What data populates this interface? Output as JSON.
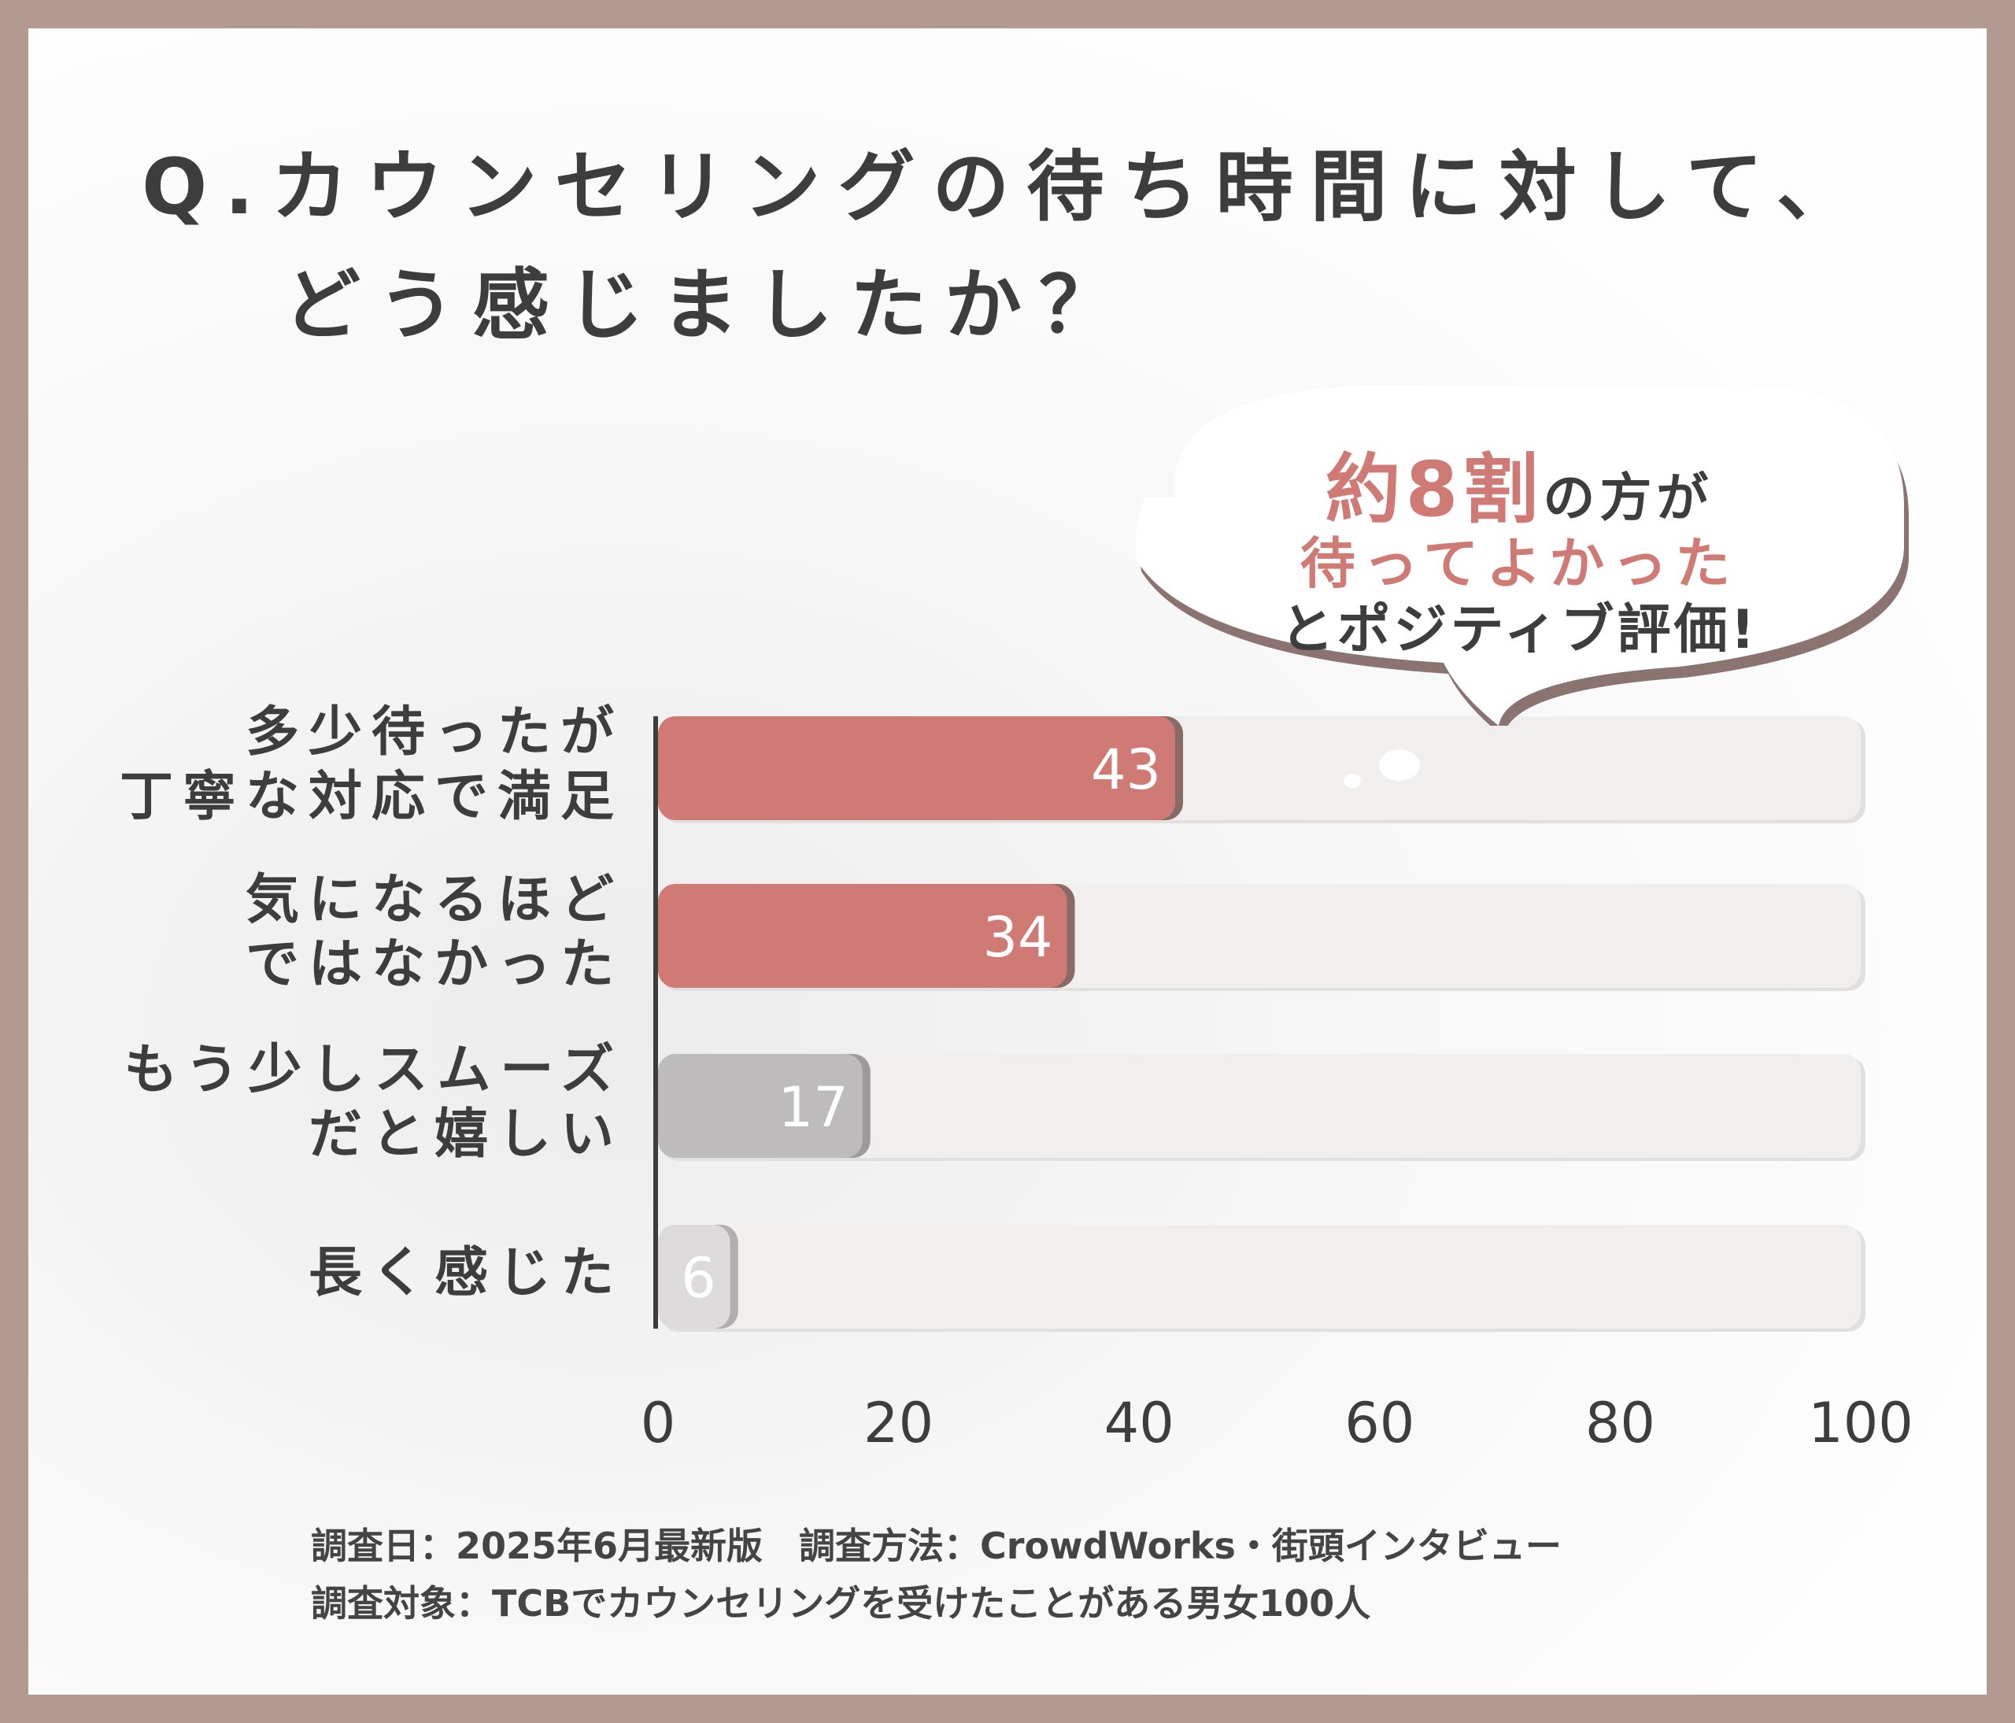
{
  "title": {
    "line1": "Q.カウンセリングの待ち時間に対して、",
    "line2": "どう感じましたか？"
  },
  "callout": {
    "prefix": "約",
    "number": "8",
    "suffix_accent": "割",
    "rest": "の方が",
    "line2": "待ってよかった",
    "line3": "とポジティブ評価!"
  },
  "footer": {
    "line1": "調査日：2025年6月最新版　調査方法：CrowdWorks・街頭インタビュー",
    "line2": "調査対象：TCBでカウンセリングを受けたことがある男女100人"
  },
  "colors": {
    "positive": "#d07a75",
    "neutral": "#bdbbbb",
    "light": "#dcdada",
    "track": "#f1efee"
  },
  "chart_data": {
    "type": "bar",
    "orientation": "horizontal",
    "categories": [
      [
        "多少待ったが",
        "丁寧な対応で満足"
      ],
      [
        "気になるほど",
        "ではなかった"
      ],
      [
        "もう少しスムーズ",
        "だと嬉しい"
      ],
      [
        "長く感じた"
      ]
    ],
    "values": [
      43,
      34,
      17,
      6
    ],
    "value_labels": [
      "43",
      "34",
      "17",
      "6"
    ],
    "xlim": [
      0,
      100
    ],
    "xticks": [
      "0",
      "20",
      "40",
      "60",
      "80",
      "100"
    ],
    "xlabel": "",
    "ylabel": "",
    "grid": false
  }
}
